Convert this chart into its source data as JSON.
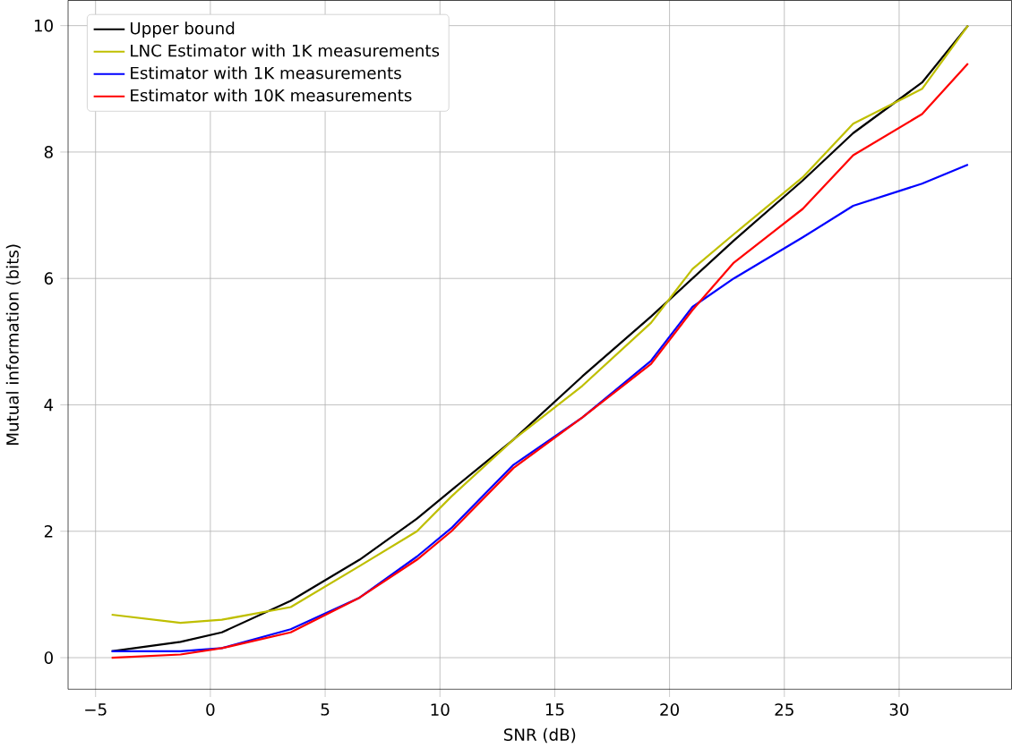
{
  "chart_data": {
    "type": "line",
    "xlabel": "SNR (dB)",
    "ylabel": "Mutual information (bits)",
    "x": [
      -4.3,
      -1.3,
      0.5,
      3.5,
      6.5,
      9,
      10.5,
      13.2,
      16.2,
      19.2,
      21,
      22.8,
      25.8,
      28,
      31,
      33
    ],
    "series": [
      {
        "name": "Upper bound",
        "color": "#000000",
        "values": [
          0.1,
          0.25,
          0.4,
          0.9,
          1.55,
          2.2,
          2.65,
          3.45,
          4.45,
          5.4,
          6.0,
          6.6,
          7.55,
          8.3,
          9.1,
          10.0
        ]
      },
      {
        "name": "LNC Estimator with 1K measurements",
        "color": "#bfbf00",
        "values": [
          0.68,
          0.55,
          0.6,
          0.8,
          1.45,
          2.0,
          2.55,
          3.45,
          4.3,
          5.3,
          6.15,
          6.7,
          7.6,
          8.45,
          9.0,
          10.0
        ]
      },
      {
        "name": "Estimator with 1K measurements",
        "color": "#0000ff",
        "values": [
          0.1,
          0.1,
          0.15,
          0.45,
          0.95,
          1.6,
          2.05,
          3.05,
          3.8,
          4.7,
          5.55,
          6.0,
          6.65,
          7.15,
          7.5,
          7.8
        ]
      },
      {
        "name": "Estimator with 10K measurements",
        "color": "#ff0000",
        "values": [
          0.0,
          0.05,
          0.15,
          0.4,
          0.95,
          1.55,
          2.0,
          3.0,
          3.8,
          4.65,
          5.5,
          6.25,
          7.1,
          7.95,
          8.6,
          9.4
        ]
      }
    ],
    "xlim": [
      -6.2,
      34.9
    ],
    "ylim": [
      -0.5,
      10.4
    ],
    "xticks": [
      {
        "value": -5,
        "label": "−5"
      },
      0,
      5,
      10,
      15,
      20,
      25,
      30
    ],
    "yticks": [
      0,
      2,
      4,
      6,
      8,
      10
    ],
    "grid": true,
    "legend": "top left",
    "marker": "none",
    "line_style": "solid"
  }
}
